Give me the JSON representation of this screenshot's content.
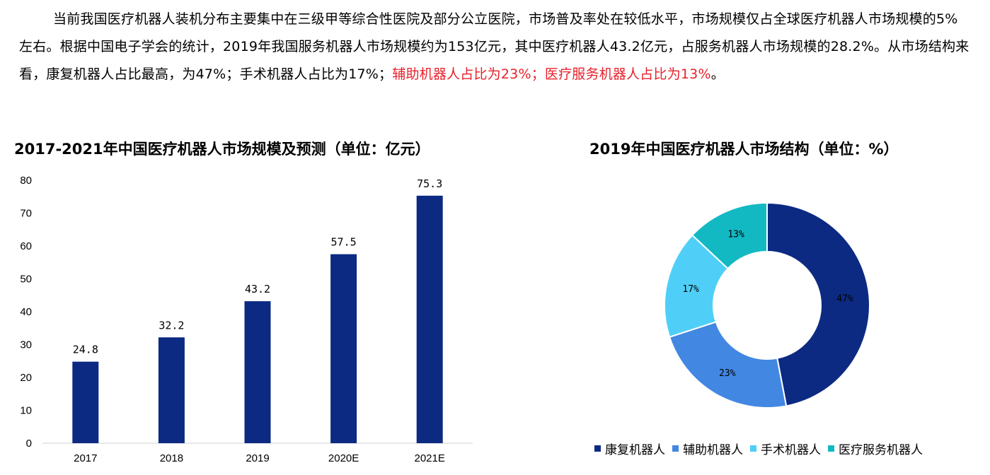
{
  "paragraph": {
    "black": "当前我国医疗机器人装机分布主要集中在三级甲等综合性医院及部分公立医院，市场普及率处在较低水平，市场规模仅占全球医疗机器人市场规模的5%左右。根据中国电子学会的统计，2019年我国服务机器人市场规模约为153亿元，其中医疗机器人43.2亿元，占服务机器人市场规模的28.2%。从市场结构来看，康复机器人占比最高，为47%；手术机器人占比为17%；",
    "red": "辅助机器人占比为23%；医疗服务机器人占比为13%",
    "end": "。"
  },
  "chart_data": [
    {
      "type": "bar",
      "title": "2017-2021年中国医疗机器人市场规模及预测（单位：亿元）",
      "categories": [
        "2017",
        "2018",
        "2019",
        "2020E",
        "2021E"
      ],
      "values": [
        24.8,
        32.2,
        43.2,
        57.5,
        75.3
      ],
      "value_labels": [
        "24.8",
        "32.2",
        "43.2",
        "57.5",
        "75.3"
      ],
      "yticks": [
        0,
        10,
        20,
        30,
        40,
        50,
        60,
        70,
        80
      ],
      "ylim": [
        0,
        80
      ],
      "grid": false,
      "color": "#0c2a82"
    },
    {
      "type": "pie",
      "style": "donut",
      "title": "2019年中国医疗机器人市场结构（单位：%）",
      "categories": [
        "康复机器人",
        "辅助机器人",
        "手术机器人",
        "医疗服务机器人"
      ],
      "values": [
        47,
        23,
        17,
        13
      ],
      "value_labels": [
        "47%",
        "23%",
        "17%",
        "13%"
      ],
      "colors": [
        "#0c2a82",
        "#4287e2",
        "#4fcff7",
        "#12b9c3"
      ],
      "legend_position": "bottom"
    }
  ]
}
